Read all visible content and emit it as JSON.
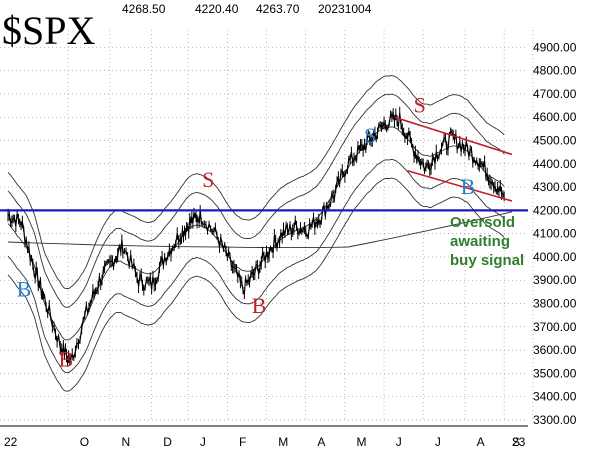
{
  "chart_data": {
    "type": "line",
    "title": "$SPX",
    "header_values": [
      "4268.50",
      "4220.40",
      "4263.70",
      "20231004"
    ],
    "ylim": [
      3300,
      5000
    ],
    "y_ticks": [
      "4900.00",
      "4800.00",
      "4700.00",
      "4600.00",
      "4500.00",
      "4400.00",
      "4300.00",
      "4200.00",
      "4100.00",
      "4000.00",
      "3900.00",
      "3800.00",
      "3700.00",
      "3600.00",
      "3500.00",
      "3400.00",
      "3300.00"
    ],
    "x_ticks": [
      "22",
      "O",
      "N",
      "D",
      "J",
      "F",
      "M",
      "A",
      "M",
      "J",
      "J",
      "A",
      "S",
      "23"
    ],
    "grid": true,
    "price_keypoints": [
      {
        "x": 0.0,
        "y": 4180
      },
      {
        "x": 0.5,
        "y": 4150
      },
      {
        "x": 1.0,
        "y": 3950
      },
      {
        "x": 1.4,
        "y": 3820
      },
      {
        "x": 2.0,
        "y": 3620
      },
      {
        "x": 2.4,
        "y": 3550
      },
      {
        "x": 3.0,
        "y": 3760
      },
      {
        "x": 3.5,
        "y": 3900
      },
      {
        "x": 4.0,
        "y": 3980
      },
      {
        "x": 4.4,
        "y": 4050
      },
      {
        "x": 5.0,
        "y": 3900
      },
      {
        "x": 5.5,
        "y": 3880
      },
      {
        "x": 6.0,
        "y": 4000
      },
      {
        "x": 6.6,
        "y": 4100
      },
      {
        "x": 7.0,
        "y": 4150
      },
      {
        "x": 7.4,
        "y": 4180
      },
      {
        "x": 8.0,
        "y": 4090
      },
      {
        "x": 8.5,
        "y": 3980
      },
      {
        "x": 9.0,
        "y": 3860
      },
      {
        "x": 9.5,
        "y": 3940
      },
      {
        "x": 10.0,
        "y": 4030
      },
      {
        "x": 10.5,
        "y": 4100
      },
      {
        "x": 11.0,
        "y": 4130
      },
      {
        "x": 11.5,
        "y": 4120
      },
      {
        "x": 12.0,
        "y": 4180
      },
      {
        "x": 12.5,
        "y": 4270
      },
      {
        "x": 13.0,
        "y": 4400
      },
      {
        "x": 13.5,
        "y": 4460
      },
      {
        "x": 14.0,
        "y": 4520
      },
      {
        "x": 14.5,
        "y": 4580
      },
      {
        "x": 15.0,
        "y": 4590
      },
      {
        "x": 15.5,
        "y": 4470
      },
      {
        "x": 16.0,
        "y": 4380
      },
      {
        "x": 16.5,
        "y": 4460
      },
      {
        "x": 17.0,
        "y": 4510
      },
      {
        "x": 17.5,
        "y": 4470
      },
      {
        "x": 18.0,
        "y": 4420
      },
      {
        "x": 18.5,
        "y": 4340
      },
      {
        "x": 19.0,
        "y": 4260
      }
    ],
    "horizontal_line": {
      "y": 4200,
      "color": "#1a1ab8"
    },
    "trend_lines": [
      {
        "from": {
          "x": 14.8,
          "y": 4600
        },
        "to": {
          "x": 19.3,
          "y": 4440
        },
        "color": "#c0202a"
      },
      {
        "from": {
          "x": 15.3,
          "y": 4370
        },
        "to": {
          "x": 19.3,
          "y": 4240
        },
        "color": "#c0202a"
      }
    ],
    "signals": [
      {
        "label": "B",
        "x": 0.6,
        "y": 3830,
        "color": "#2a7fd0"
      },
      {
        "label": "B",
        "x": 2.2,
        "y": 3530,
        "color": "#c0202a"
      },
      {
        "label": "S",
        "x": 7.7,
        "y": 4300,
        "color": "#c0202a"
      },
      {
        "label": "B",
        "x": 9.6,
        "y": 3760,
        "color": "#c0202a"
      },
      {
        "label": "S",
        "x": 13.9,
        "y": 4490,
        "color": "#2a7fd0"
      },
      {
        "label": "S",
        "x": 15.8,
        "y": 4620,
        "color": "#c0202a"
      },
      {
        "label": "B",
        "x": 17.6,
        "y": 4270,
        "color": "#2a7fd0"
      }
    ],
    "annotation": {
      "lines": [
        "Oversold",
        "awaiting",
        "buy signal"
      ],
      "color": "#2f7f2f"
    }
  }
}
